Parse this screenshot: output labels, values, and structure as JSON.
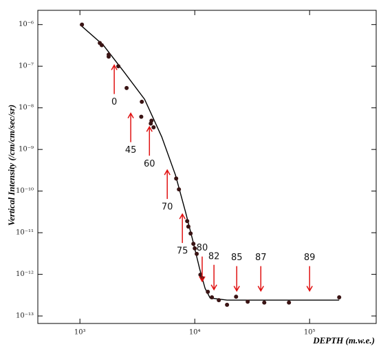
{
  "chart_data": {
    "type": "scatter",
    "x_label": "DEPTH (m.w.e.)",
    "y_label": "Vertical Intensity (/cm/cm/sec/sr)",
    "xscale": "log",
    "yscale": "log",
    "xlim": [
      430,
      380000
    ],
    "ylim": [
      6.6e-14,
      2.2e-06
    ],
    "xticks": [
      {
        "value": 1000,
        "label": "10³"
      },
      {
        "value": 10000,
        "label": "10⁴"
      },
      {
        "value": 100000,
        "label": "10⁵"
      }
    ],
    "yticks": [
      {
        "value": 1e-06,
        "label": "10⁻⁶"
      },
      {
        "value": 1e-07,
        "label": "10⁻⁷"
      },
      {
        "value": 1e-08,
        "label": "10⁻⁸"
      },
      {
        "value": 1e-09,
        "label": "10⁻⁹"
      },
      {
        "value": 1e-10,
        "label": "10⁻¹⁰"
      },
      {
        "value": 1e-11,
        "label": "10⁻¹¹"
      },
      {
        "value": 1e-12,
        "label": "10⁻¹²"
      },
      {
        "value": 1e-13,
        "label": "10⁻¹³"
      }
    ],
    "series": [
      {
        "mode": "line",
        "color": "#000000",
        "x": [
          1000,
          1600,
          2420,
          3660,
          5160,
          6800,
          8350,
          9600,
          11000,
          12300,
          13600,
          19100,
          181000
        ],
        "values": [
          1e-06,
          3.2e-07,
          7.3e-08,
          1.6e-08,
          2e-09,
          2.4e-10,
          3e-11,
          6.6e-12,
          1.4e-12,
          4.6e-13,
          2.7e-13,
          2.4e-13,
          2.4e-13
        ]
      },
      {
        "mode": "markers",
        "color": "#3a1414",
        "x": [
          1042,
          1490,
          1550,
          1780,
          1780,
          2160,
          2550,
          3460,
          3420,
          4200,
          4140,
          4380,
          6890,
          7280,
          8590,
          8800,
          9200,
          9730,
          10000,
          10400,
          11200,
          11600,
          13000,
          14100,
          16200,
          19100,
          22900,
          28900,
          40300,
          66100,
          181000
        ],
        "values": [
          1e-06,
          3.6e-07,
          3.2e-07,
          1.9e-07,
          1.7e-07,
          1e-07,
          3e-08,
          1.4e-08,
          6.1e-09,
          4.9e-09,
          4.2e-09,
          3.4e-09,
          2e-10,
          1.1e-10,
          1.9e-11,
          1.4e-11,
          9.6e-12,
          5.4e-12,
          4.2e-12,
          3.1e-12,
          9.8e-13,
          8.2e-13,
          3.8e-13,
          2.8e-13,
          2.4e-13,
          1.85e-13,
          2.9e-13,
          2.2e-13,
          2.1e-13,
          2.1e-13,
          2.8e-13
        ]
      }
    ],
    "annotation_color": "#e01010",
    "annotations": [
      {
        "text": "0",
        "x": 1990,
        "y": 1.06e-07,
        "direction": "up"
      },
      {
        "text": "45",
        "x": 2770,
        "y": 7.4e-09,
        "direction": "up"
      },
      {
        "text": "60",
        "x": 4030,
        "y": 3.5e-09,
        "direction": "up"
      },
      {
        "text": "70",
        "x": 5760,
        "y": 3.2e-10,
        "direction": "up"
      },
      {
        "text": "75",
        "x": 7800,
        "y": 2.8e-11,
        "direction": "up"
      },
      {
        "text": "80",
        "x": 11600,
        "y": 6.8e-13,
        "direction": "down"
      },
      {
        "text": "82",
        "x": 14700,
        "y": 4.3e-13,
        "direction": "down"
      },
      {
        "text": "85",
        "x": 23200,
        "y": 4e-13,
        "direction": "down"
      },
      {
        "text": "87",
        "x": 37600,
        "y": 4e-13,
        "direction": "down"
      },
      {
        "text": "89",
        "x": 100000,
        "y": 4e-13,
        "direction": "down"
      }
    ]
  }
}
